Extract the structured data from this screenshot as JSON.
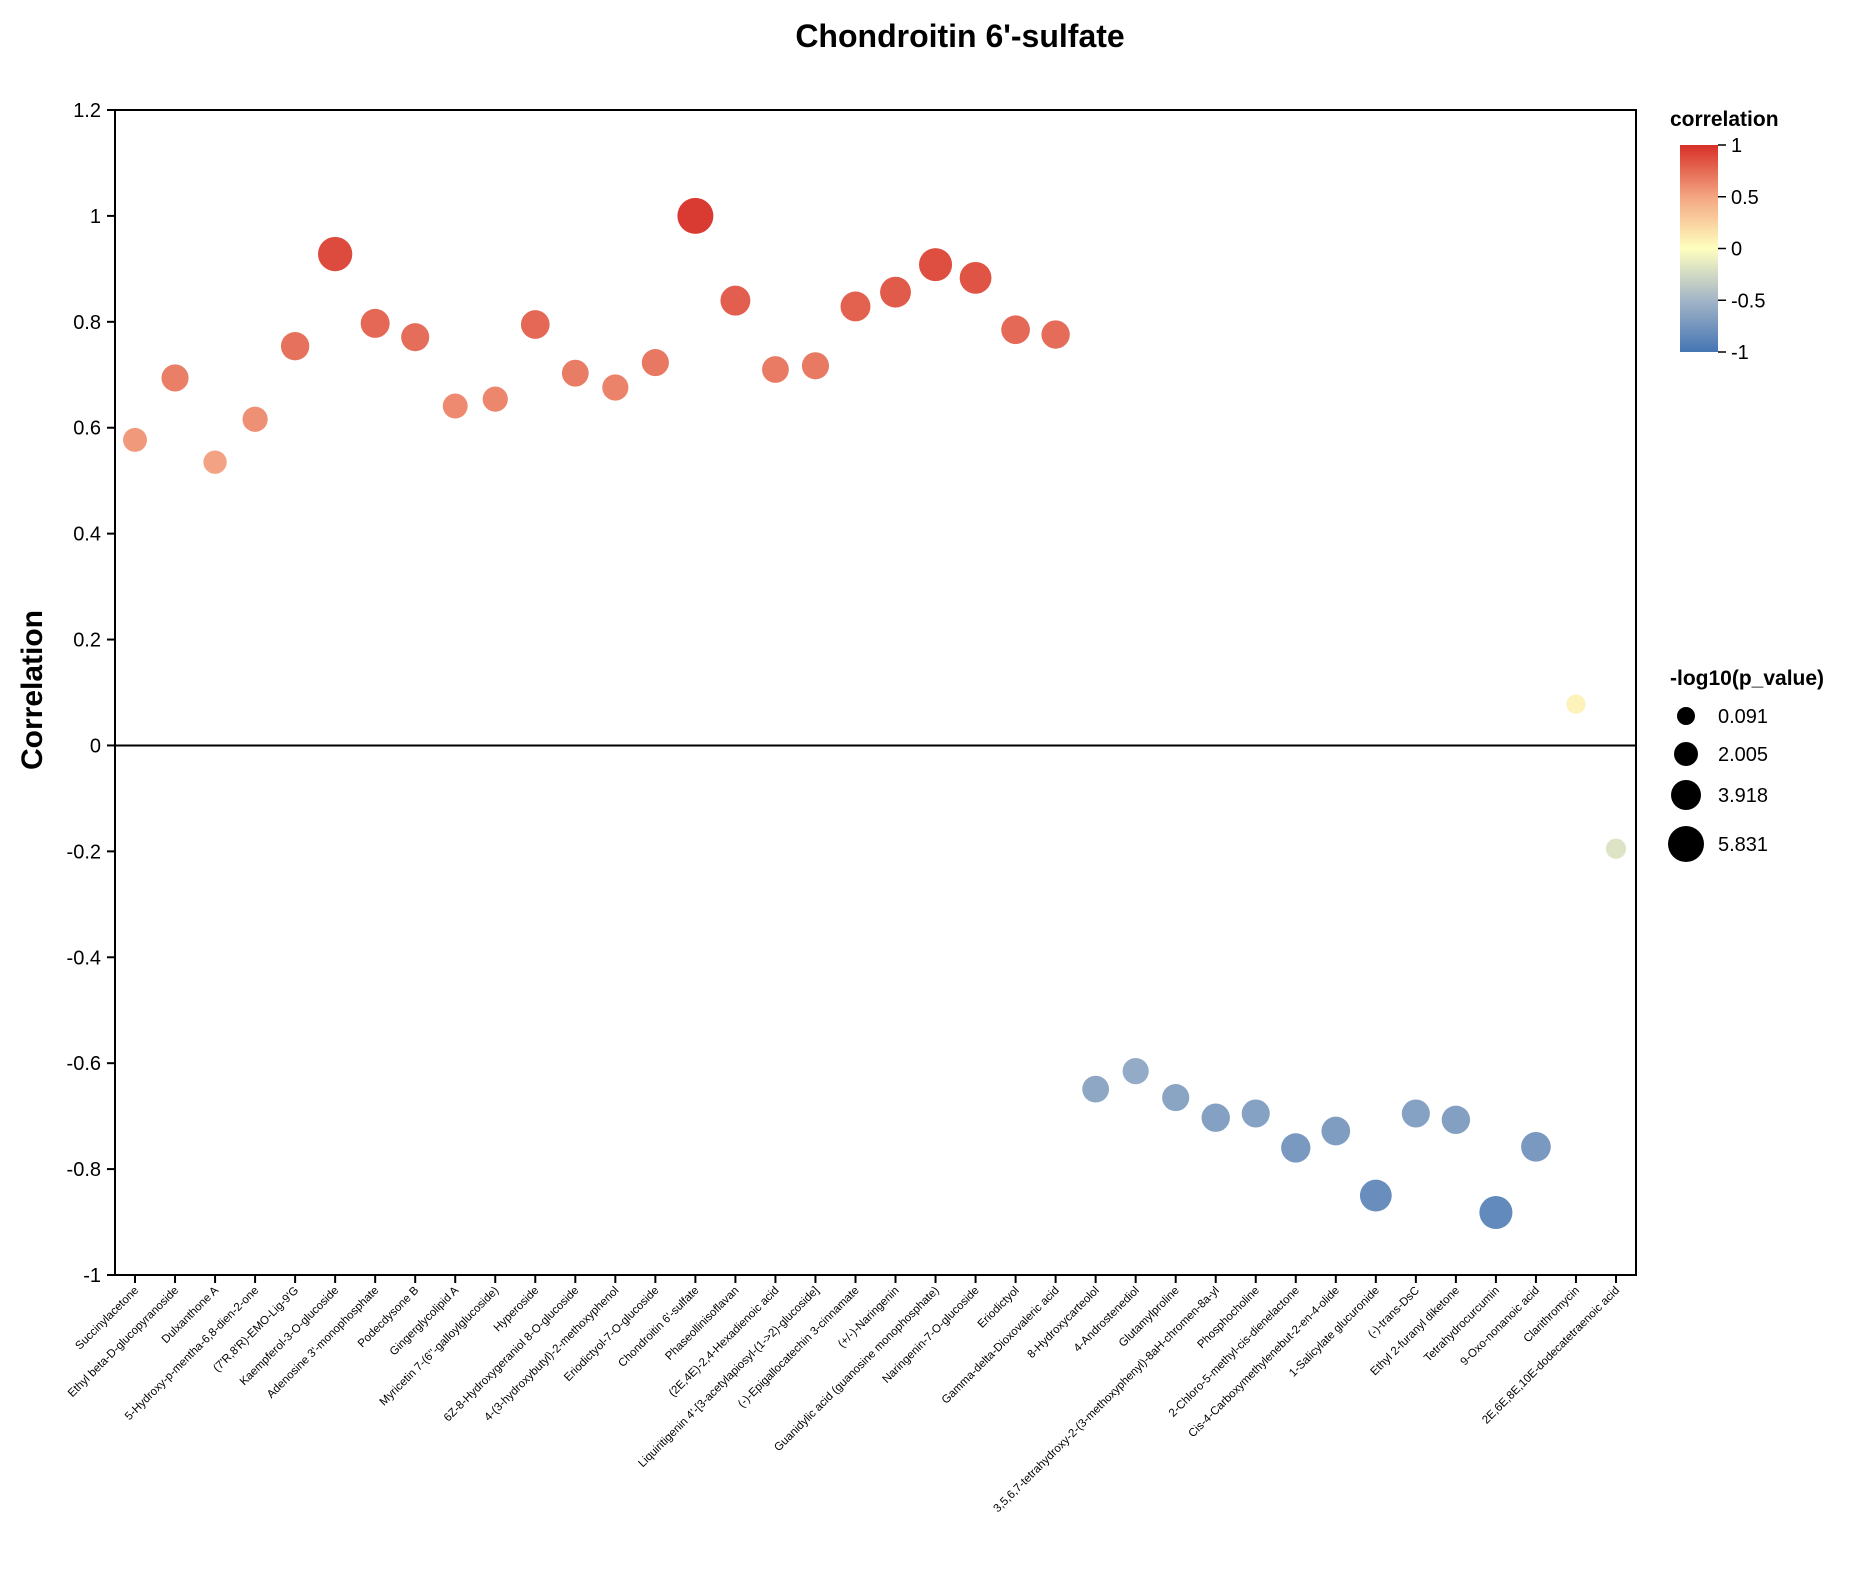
{
  "chart_data": {
    "type": "scatter",
    "title": "Chondroitin 6'-sulfate",
    "xlabel": "",
    "ylabel": "Correlation",
    "ylim": [
      -1,
      1.2
    ],
    "yticks": [
      1.2,
      1,
      0.8,
      0.6,
      0.4,
      0.2,
      0,
      -0.2,
      -0.4,
      -0.6,
      -0.8,
      -1
    ],
    "ytick_labels": [
      "1.2",
      "1",
      "0.8",
      "0.6",
      "0.4",
      "0.2",
      "0",
      "-0.2",
      "-0.4",
      "-0.6",
      "-0.8",
      "-1"
    ],
    "categories": [
      "Succinylacetone",
      "Ethyl beta-D-glucopyranoside",
      "Dulxanthone A",
      "5-Hydroxy-p-mentha-6,8-dien-2-one",
      "(7'R,8'R)-EMO-Lig-9'G",
      "Kaempferol-3-O-glucoside",
      "Adenosine 3'-monophosphate",
      "Podecdysone B",
      "Gingerglycolipid A",
      "Myricetin 7-(6''-galloylglucoside)",
      "Hyperoside",
      "6Z-8-Hydroxygeraniol 8-O-glucoside",
      "4-(3-hydroxybutyl)-2-methoxyphenol",
      "Eriodictyol-7-O-glucoside",
      "Chondroitin 6'-sulfate",
      "Phaseollinisoflavan",
      "(2E,4E)-2,4-Hexadienoic acid",
      "Liquiritigenin 4'-[3-acetylapiosyl-(1->2)-glucoside]",
      "(-)-Epigallocatechin 3-cinnamate",
      "(+/-)-Naringenin",
      "Guanidylic acid (guanosine monophosphate)",
      "Naringenin-7-O-glucoside",
      "Eriodictyol",
      "Gamma-delta-Dioxovaleric acid",
      "8-Hydroxycarteolol",
      "4-Androstenediol",
      "Glutamylproline",
      "3,5,6,7-tetrahydroxy-2-(3-methoxyphenyl)-8aH-chromen-8a-yl",
      "Phosphocholine",
      "2-Chloro-5-methyl-cis-dienelactone",
      "Cis-4-Carboxymethylenebut-2-en-4-olide",
      "1-Salicylate glucuronide",
      "(-)-trans-DsC",
      "Ethyl 2-furanyl diketone",
      "Tetrahydrocurcumin",
      "9-Oxo-nonanoic acid",
      "Clarithromycin",
      "2E,6E,8E,10E-dodecatetraenoic acid"
    ],
    "correlation": [
      0.577,
      0.694,
      0.535,
      0.616,
      0.754,
      0.928,
      0.797,
      0.771,
      0.641,
      0.654,
      0.795,
      0.703,
      0.676,
      0.723,
      1.0,
      0.84,
      0.71,
      0.717,
      0.829,
      0.856,
      0.908,
      0.883,
      0.785,
      0.776,
      -0.649,
      -0.615,
      -0.665,
      -0.703,
      -0.695,
      -0.76,
      -0.728,
      -0.85,
      -0.695,
      -0.707,
      -0.882,
      -0.758,
      0.078,
      -0.195
    ],
    "neg_log10_p_value": [
      2.0,
      3.0,
      1.8,
      2.4,
      3.4,
      5.3,
      3.6,
      3.3,
      2.3,
      2.4,
      3.5,
      2.9,
      2.7,
      3.0,
      5.831,
      3.9,
      2.9,
      3.0,
      3.9,
      4.2,
      4.9,
      4.5,
      3.5,
      3.4,
      2.9,
      2.7,
      3.0,
      3.4,
      3.3,
      3.7,
      3.5,
      4.5,
      3.3,
      3.4,
      4.9,
      3.8,
      0.5,
      0.8
    ],
    "color_legend": {
      "title": "correlation",
      "ticks": [
        1,
        0.5,
        0,
        -0.5,
        -1
      ],
      "tick_labels": [
        "1",
        "0.5",
        "0",
        "-0.5",
        "-1"
      ]
    },
    "size_legend": {
      "title": "-log10(p_value)",
      "values": [
        0.091,
        2.005,
        3.918,
        5.831
      ],
      "labels": [
        "0.091",
        "2.005",
        "3.918",
        "5.831"
      ]
    },
    "colors": {
      "pos": "#d73027",
      "mid": "#ffffbf",
      "neg": "#4575b4",
      "axis": "#000000"
    }
  }
}
